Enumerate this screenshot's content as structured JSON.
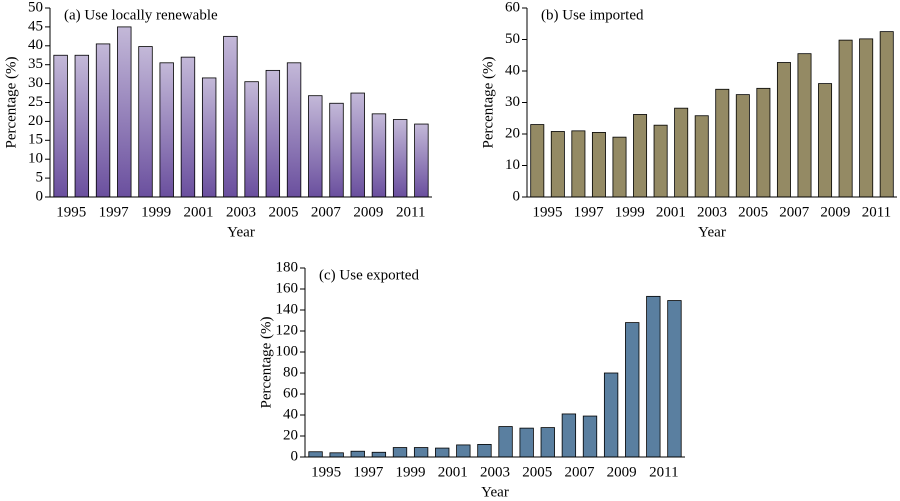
{
  "chart_data": [
    {
      "type": "bar",
      "title": "(a) Use locally renewable",
      "xlabel": "Year",
      "ylabel": "Percentage (%)",
      "categories": [
        "1995",
        null,
        "1997",
        null,
        "1999",
        null,
        "2001",
        null,
        "2003",
        null,
        "2005",
        null,
        "2007",
        null,
        "2009",
        null,
        "2011",
        null
      ],
      "values": [
        37.5,
        37.5,
        40.5,
        45,
        39.8,
        35.5,
        37,
        31.5,
        42.5,
        30.5,
        33.5,
        35.5,
        26.8,
        24.8,
        27.5,
        22,
        20.5,
        19.3
      ],
      "color": "#6a4f9e",
      "gradient": true,
      "ylim": [
        0,
        50
      ],
      "yticks": [
        0,
        5,
        10,
        15,
        20,
        25,
        30,
        35,
        40,
        45,
        50
      ]
    },
    {
      "type": "bar",
      "title": "(b) Use imported",
      "xlabel": "Year",
      "ylabel": "Percentage (%)",
      "categories": [
        "1995",
        null,
        "1997",
        null,
        "1999",
        null,
        "2001",
        null,
        "2003",
        null,
        "2005",
        null,
        "2007",
        null,
        "2009",
        null,
        "2011",
        null
      ],
      "values": [
        23,
        20.8,
        21,
        20.5,
        19,
        26.2,
        22.8,
        28.2,
        25.8,
        34.2,
        32.5,
        34.5,
        42.7,
        45.5,
        36,
        49.8,
        50.2,
        52.5
      ],
      "color": "#948a64",
      "gradient": false,
      "ylim": [
        0,
        60
      ],
      "yticks": [
        0,
        10,
        20,
        30,
        40,
        50,
        60
      ]
    },
    {
      "type": "bar",
      "title": "(c) Use exported",
      "xlabel": "Year",
      "ylabel": "Percentage (%)",
      "categories": [
        "1995",
        null,
        "1997",
        null,
        "1999",
        null,
        "2001",
        null,
        "2003",
        null,
        "2005",
        null,
        "2007",
        null,
        "2009",
        null,
        "2011",
        null
      ],
      "values": [
        5,
        4,
        5.5,
        4.5,
        9,
        9,
        8.5,
        11.5,
        12,
        29,
        27.5,
        28,
        41,
        39,
        80,
        128,
        153,
        149
      ],
      "color": "#5a7fa0",
      "gradient": false,
      "ylim": [
        0,
        180
      ],
      "yticks": [
        0,
        20,
        40,
        60,
        80,
        100,
        120,
        140,
        160,
        180
      ]
    }
  ]
}
